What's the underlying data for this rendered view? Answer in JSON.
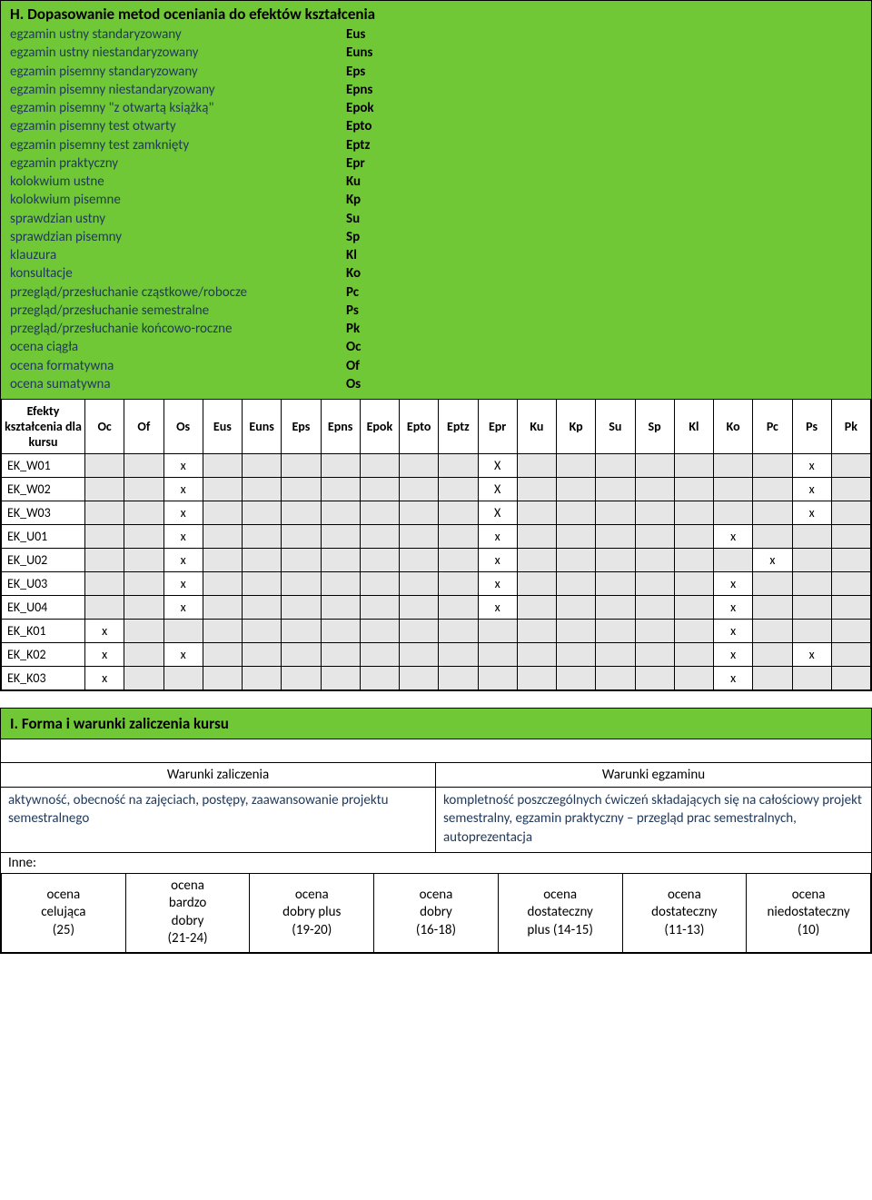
{
  "sectionH": {
    "title": "H. Dopasowanie metod oceniania do efektów kształcenia",
    "methods": [
      {
        "label": "egzamin ustny standaryzowany",
        "code": "Eus"
      },
      {
        "label": "egzamin ustny niestandaryzowany",
        "code": "Euns"
      },
      {
        "label": "egzamin pisemny standaryzowany",
        "code": "Eps"
      },
      {
        "label": "egzamin pisemny niestandaryzowany",
        "code": "Epns"
      },
      {
        "label": "egzamin pisemny \"z otwartą książką\"",
        "code": "Epok"
      },
      {
        "label": "egzamin pisemny test otwarty",
        "code": "Epto"
      },
      {
        "label": "egzamin pisemny test zamknięty",
        "code": "Eptz"
      },
      {
        "label": "egzamin praktyczny",
        "code": "Epr"
      },
      {
        "label": "kolokwium ustne",
        "code": "Ku"
      },
      {
        "label": "kolokwium pisemne",
        "code": "Kp"
      },
      {
        "label": "sprawdzian ustny",
        "code": "Su"
      },
      {
        "label": "sprawdzian pisemny",
        "code": "Sp"
      },
      {
        "label": "klauzura",
        "code": "Kl"
      },
      {
        "label": "konsultacje",
        "code": "Ko"
      },
      {
        "label": "przegląd/przesłuchanie cząstkowe/robocze",
        "code": "Pc"
      },
      {
        "label": "przegląd/przesłuchanie semestralne",
        "code": "Ps"
      },
      {
        "label": "przegląd/przesłuchanie końcowo-roczne",
        "code": "Pk"
      },
      {
        "label": "ocena ciągła",
        "code": "Oc"
      },
      {
        "label": "ocena formatywna",
        "code": "Of"
      },
      {
        "label": "ocena sumatywna",
        "code": "Os"
      }
    ],
    "matrix": {
      "rowHeader": "Efekty kształcenia dla kursu",
      "columns": [
        "Oc",
        "Of",
        "Os",
        "Eus",
        "Euns",
        "Eps",
        "Epns",
        "Epok",
        "Epto",
        "Eptz",
        "Epr",
        "Ku",
        "Kp",
        "Su",
        "Sp",
        "Kl",
        "Ko",
        "Pc",
        "Ps",
        "Pk"
      ],
      "rows": [
        {
          "label": "EK_W01",
          "cells": [
            "",
            "",
            "x",
            "",
            "",
            "",
            "",
            "",
            "",
            "",
            "X",
            "",
            "",
            "",
            "",
            "",
            "",
            "",
            "x",
            ""
          ]
        },
        {
          "label": "EK_W02",
          "cells": [
            "",
            "",
            "x",
            "",
            "",
            "",
            "",
            "",
            "",
            "",
            "X",
            "",
            "",
            "",
            "",
            "",
            "",
            "",
            "x",
            ""
          ]
        },
        {
          "label": "EK_W03",
          "cells": [
            "",
            "",
            "x",
            "",
            "",
            "",
            "",
            "",
            "",
            "",
            "X",
            "",
            "",
            "",
            "",
            "",
            "",
            "",
            "x",
            ""
          ]
        },
        {
          "label": "EK_U01",
          "cells": [
            "",
            "",
            "x",
            "",
            "",
            "",
            "",
            "",
            "",
            "",
            "x",
            "",
            "",
            "",
            "",
            "",
            "x",
            "",
            "",
            ""
          ]
        },
        {
          "label": "EK_U02",
          "cells": [
            "",
            "",
            "x",
            "",
            "",
            "",
            "",
            "",
            "",
            "",
            "x",
            "",
            "",
            "",
            "",
            "",
            "",
            "x",
            "",
            ""
          ]
        },
        {
          "label": "EK_U03",
          "cells": [
            "",
            "",
            "x",
            "",
            "",
            "",
            "",
            "",
            "",
            "",
            "x",
            "",
            "",
            "",
            "",
            "",
            "x",
            "",
            "",
            ""
          ]
        },
        {
          "label": "EK_U04",
          "cells": [
            "",
            "",
            "x",
            "",
            "",
            "",
            "",
            "",
            "",
            "",
            "x",
            "",
            "",
            "",
            "",
            "",
            "x",
            "",
            "",
            ""
          ]
        },
        {
          "label": "EK_K01",
          "cells": [
            "x",
            "",
            "",
            "",
            "",
            "",
            "",
            "",
            "",
            "",
            "",
            "",
            "",
            "",
            "",
            "",
            "x",
            "",
            "",
            ""
          ]
        },
        {
          "label": "EK_K02",
          "cells": [
            "x",
            "",
            "x",
            "",
            "",
            "",
            "",
            "",
            "",
            "",
            "",
            "",
            "",
            "",
            "",
            "",
            "x",
            "",
            "x",
            ""
          ]
        },
        {
          "label": "EK_K03",
          "cells": [
            "x",
            "",
            "",
            "",
            "",
            "",
            "",
            "",
            "",
            "",
            "",
            "",
            "",
            "",
            "",
            "",
            "x",
            "",
            "",
            ""
          ]
        }
      ],
      "grayPattern": {
        "comment": "columns that are gray-shaded when empty (1-based in columns list)",
        "rowGray": {
          "EK_W01": [
            1,
            2,
            4,
            5,
            6,
            7,
            8,
            9,
            10,
            12,
            13,
            14,
            15,
            16,
            17,
            18,
            20
          ],
          "EK_W02": [
            1,
            2,
            4,
            5,
            6,
            7,
            8,
            9,
            10,
            12,
            13,
            14,
            15,
            16,
            17,
            18,
            20
          ],
          "EK_W03": [
            1,
            2,
            4,
            5,
            6,
            7,
            8,
            9,
            10,
            12,
            13,
            14,
            15,
            16,
            17,
            18,
            20
          ],
          "EK_U01": [
            1,
            2,
            4,
            5,
            6,
            7,
            8,
            9,
            10,
            12,
            13,
            14,
            15,
            16,
            18,
            19,
            20
          ],
          "EK_U02": [
            1,
            2,
            4,
            5,
            6,
            7,
            8,
            9,
            10,
            12,
            13,
            14,
            15,
            16,
            17,
            19,
            20
          ],
          "EK_U03": [
            1,
            2,
            4,
            5,
            6,
            7,
            8,
            9,
            10,
            12,
            13,
            14,
            15,
            16,
            18,
            19,
            20
          ],
          "EK_U04": [
            1,
            2,
            4,
            5,
            6,
            7,
            8,
            9,
            10,
            12,
            13,
            14,
            15,
            16,
            18,
            19,
            20
          ],
          "EK_K01": [
            2,
            3,
            4,
            5,
            6,
            7,
            8,
            9,
            10,
            11,
            12,
            13,
            14,
            15,
            16,
            18,
            19,
            20
          ],
          "EK_K02": [
            2,
            4,
            5,
            6,
            7,
            8,
            9,
            10,
            11,
            12,
            13,
            14,
            15,
            16,
            18,
            20
          ],
          "EK_K03": [
            2,
            3,
            4,
            5,
            6,
            7,
            8,
            9,
            10,
            11,
            12,
            13,
            14,
            15,
            16,
            18,
            19,
            20
          ]
        }
      }
    }
  },
  "sectionI": {
    "title": "I. Forma i warunki zaliczenia kursu",
    "left_header": "Warunki zaliczenia",
    "right_header": "Warunki egzaminu",
    "left_text": "aktywność, obecność na zajęciach, postępy, zaawansowanie projektu semestralnego",
    "right_text": "kompletność poszczególnych ćwiczeń składających się na całościowy projekt semestralny, egzamin praktyczny – przegląd prac semestralnych, autoprezentacja",
    "inne": "Inne:",
    "grades": [
      {
        "line1": "ocena",
        "line2": "celująca",
        "line3": "(25)"
      },
      {
        "line1": "ocena",
        "line2": "bardzo",
        "line3": "dobry",
        "line4": "(21-24)"
      },
      {
        "line1": "ocena",
        "line2": "dobry plus",
        "line3": "(19-20)"
      },
      {
        "line1": "ocena",
        "line2": "dobry",
        "line3": "(16-18)"
      },
      {
        "line1": "ocena",
        "line2": "dostateczny",
        "line3": "plus (14-15)"
      },
      {
        "line1": "ocena",
        "line2": "dostateczny",
        "line3": "(11-13)"
      },
      {
        "line1": "ocena",
        "line2": "niedostateczny",
        "line3": "(10)"
      }
    ]
  },
  "colors": {
    "green": "#71c837",
    "gray": "#e6e6e6",
    "textblue": "#213a5b"
  }
}
